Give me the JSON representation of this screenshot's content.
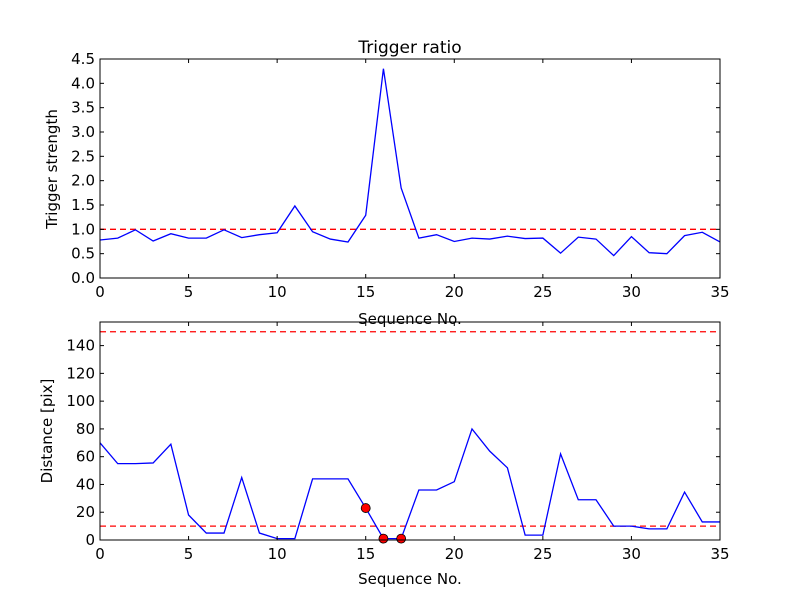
{
  "chart_data": [
    {
      "type": "line",
      "title": "Trigger ratio",
      "xlabel": "Sequence No.",
      "ylabel": "Trigger strength",
      "xlim": [
        0,
        35
      ],
      "ylim": [
        0,
        4.5
      ],
      "xticks": [
        "0",
        "5",
        "10",
        "15",
        "20",
        "25",
        "30",
        "35"
      ],
      "yticks": [
        "0.0",
        "0.5",
        "1.0",
        "1.5",
        "2.0",
        "2.5",
        "3.0",
        "3.5",
        "4.0",
        "4.5"
      ],
      "x": [
        0,
        1,
        2,
        3,
        4,
        5,
        6,
        7,
        8,
        9,
        10,
        11,
        12,
        13,
        14,
        15,
        16,
        17,
        18,
        19,
        20,
        21,
        22,
        23,
        24,
        25,
        26,
        27,
        28,
        29,
        30,
        31,
        32,
        33,
        34,
        35
      ],
      "series": [
        {
          "name": "trigger",
          "color": "#0000ff",
          "values": [
            0.78,
            0.82,
            0.99,
            0.76,
            0.91,
            0.82,
            0.82,
            0.99,
            0.83,
            0.89,
            0.93,
            1.48,
            0.95,
            0.8,
            0.74,
            1.29,
            4.3,
            1.85,
            0.82,
            0.89,
            0.75,
            0.82,
            0.8,
            0.86,
            0.81,
            0.82,
            0.51,
            0.84,
            0.8,
            0.46,
            0.85,
            0.52,
            0.5,
            0.87,
            0.94,
            0.74
          ]
        }
      ],
      "hlines": [
        {
          "y": 1.0,
          "color": "#ff0000",
          "style": "dashed"
        }
      ],
      "grid": false
    },
    {
      "type": "line",
      "title": "",
      "xlabel": "Sequence No.",
      "ylabel": "Distance [pix]",
      "xlim": [
        0,
        35
      ],
      "ylim": [
        0,
        157
      ],
      "xticks": [
        "0",
        "5",
        "10",
        "15",
        "20",
        "25",
        "30",
        "35"
      ],
      "yticks": [
        "0",
        "20",
        "40",
        "60",
        "80",
        "100",
        "120",
        "140"
      ],
      "x": [
        0,
        1,
        2,
        3,
        4,
        5,
        6,
        7,
        8,
        9,
        10,
        11,
        12,
        13,
        14,
        15,
        16,
        17,
        18,
        19,
        20,
        21,
        22,
        23,
        24,
        25,
        26,
        27,
        28,
        29,
        30,
        31,
        32,
        33,
        34,
        35
      ],
      "series": [
        {
          "name": "distance",
          "color": "#0000ff",
          "values": [
            70,
            55,
            55,
            55.5,
            69,
            18,
            5,
            5,
            45,
            5,
            1,
            1,
            44,
            44,
            44,
            23,
            1,
            1,
            36,
            36,
            42,
            80,
            64,
            52,
            3.5,
            3.5,
            62,
            29,
            29,
            10,
            10,
            8,
            8,
            34.5,
            13,
            13
          ]
        }
      ],
      "markers": {
        "color": "#ff0000",
        "x": [
          15,
          16,
          17
        ],
        "y": [
          23,
          1,
          1
        ]
      },
      "hlines": [
        {
          "y": 10,
          "color": "#ff0000",
          "style": "dashed"
        },
        {
          "y": 150,
          "color": "#ff0000",
          "style": "dashed"
        }
      ],
      "grid": false
    }
  ]
}
